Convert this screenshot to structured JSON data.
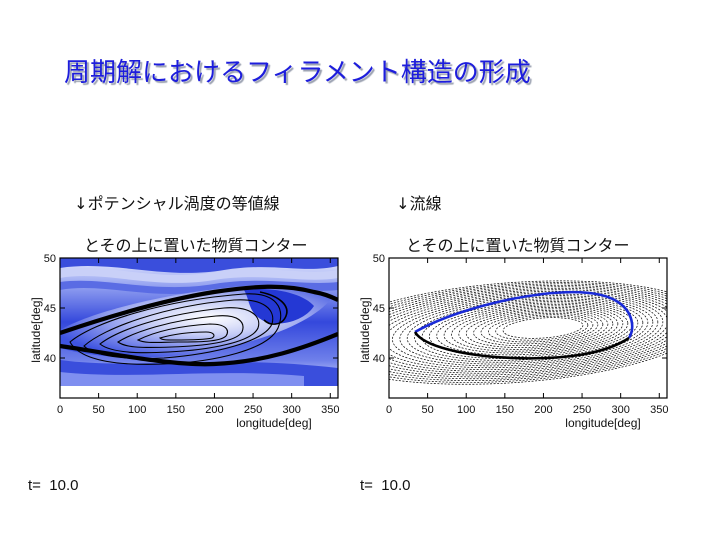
{
  "title": "周期解におけるフィラメント構造の形成",
  "left": {
    "caption_line1": "↓ポテンシャル渦度の等値線",
    "caption_line2": "とその上に置いた物質コンター",
    "time": "t=  10.0"
  },
  "right": {
    "caption_line1": "↓流線",
    "caption_line2": "とその上に置いた物質コンター",
    "time": "t=  10.0"
  },
  "chart_data": [
    {
      "type": "contour",
      "xlabel": "longitude[deg]",
      "ylabel": "latitude[deg]",
      "xlim": [
        0,
        360
      ],
      "ylim": [
        36,
        50
      ],
      "x_ticks": [
        0,
        50,
        100,
        150,
        200,
        250,
        300,
        350
      ],
      "y_ticks": [
        40,
        45,
        50
      ],
      "colors": {
        "fill_dark": "#2a3fd6",
        "fill_light": "#e8ecff",
        "contour": "#000000"
      }
    },
    {
      "type": "contour",
      "xlabel": "longitude[deg]",
      "ylabel": "latitude[deg]",
      "xlim": [
        0,
        360
      ],
      "ylim": [
        36,
        50
      ],
      "x_ticks": [
        0,
        50,
        100,
        150,
        200,
        250,
        300,
        350
      ],
      "y_ticks": [
        40,
        45,
        50
      ],
      "colors": {
        "streamline": "#000000",
        "material_contour_1": "#1a2bd8",
        "material_contour_2": "#000000"
      }
    }
  ]
}
